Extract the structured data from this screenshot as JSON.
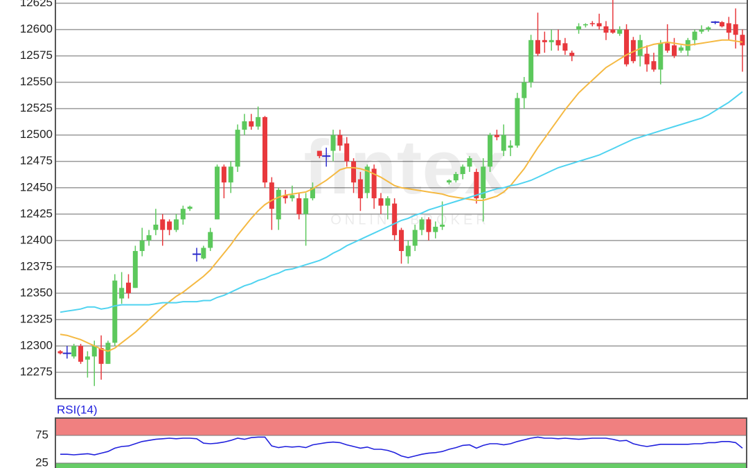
{
  "chart_data": [
    {
      "type": "candlestick",
      "ylim": [
        12250,
        12628
      ],
      "yticks": [
        12275,
        12300,
        12325,
        12350,
        12375,
        12400,
        12425,
        12450,
        12475,
        12500,
        12525,
        12550,
        12575,
        12600,
        12625
      ],
      "grid": true,
      "up_color": "#5cc85c",
      "down_color": "#e8383d",
      "doji_color": "#2b2bcc",
      "watermark": {
        "text": "fintex",
        "subtext": "ONLINE BROKER"
      },
      "open": [
        12295,
        12293,
        12290,
        12300,
        12287,
        12290,
        12298,
        12283,
        12303,
        12345,
        12360,
        12355,
        12390,
        12400,
        12410,
        12420,
        12418,
        12410,
        12420,
        12430,
        12387,
        12383,
        12393,
        12420,
        12470,
        12455,
        12470,
        12505,
        12513,
        12508,
        12517,
        12455,
        12420,
        12443,
        12440,
        12440,
        12425,
        12440,
        12485,
        12480,
        12485,
        12500,
        12492,
        12475,
        12458,
        12445,
        12468,
        12440,
        12433,
        12435,
        12410,
        12385,
        12395,
        12410,
        12420,
        12408,
        12413,
        12455,
        12457,
        12463,
        12470,
        12465,
        12440,
        12470,
        12500,
        12485,
        12488,
        12490,
        12535,
        12550,
        12590,
        12590,
        12588,
        12590,
        12587,
        12578,
        12600,
        12604,
        12606,
        12606,
        12603,
        12600,
        12596,
        12600,
        12590,
        12575,
        12577,
        12570,
        12562,
        12587,
        12585,
        12580,
        12580,
        12590,
        12598,
        12600,
        12607,
        12607,
        12606,
        12605,
        12595
      ],
      "high": [
        12296,
        12300,
        12302,
        12302,
        12295,
        12305,
        12310,
        12305,
        12368,
        12370,
        12368,
        12395,
        12412,
        12410,
        12430,
        12425,
        12420,
        12425,
        12433,
        12433,
        12393,
        12395,
        12412,
        12472,
        12472,
        12475,
        12510,
        12520,
        12520,
        12527,
        12518,
        12460,
        12450,
        12448,
        12452,
        12445,
        12445,
        12455,
        12485,
        12488,
        12505,
        12505,
        12498,
        12478,
        12465,
        12472,
        12472,
        12445,
        12442,
        12440,
        12412,
        12400,
        12415,
        12422,
        12422,
        12418,
        12437,
        12458,
        12465,
        12472,
        12480,
        12468,
        12478,
        12502,
        12505,
        12510,
        12495,
        12540,
        12555,
        12595,
        12616,
        12598,
        12600,
        12600,
        12592,
        12580,
        12606,
        12606,
        12608,
        12615,
        12608,
        12628,
        12603,
        12605,
        12593,
        12595,
        12585,
        12578,
        12590,
        12605,
        12592,
        12585,
        12592,
        12600,
        12604,
        12603,
        12608,
        12608,
        12612,
        12620,
        12600
      ],
      "low": [
        12292,
        12288,
        12288,
        12283,
        12270,
        12262,
        12268,
        12283,
        12300,
        12340,
        12345,
        12355,
        12385,
        12395,
        12405,
        12395,
        12405,
        12408,
        12415,
        12428,
        12380,
        12382,
        12390,
        12420,
        12440,
        12445,
        12465,
        12500,
        12505,
        12505,
        12450,
        12410,
        12410,
        12435,
        12437,
        12420,
        12395,
        12438,
        12478,
        12470,
        12475,
        12485,
        12470,
        12445,
        12428,
        12440,
        12430,
        12425,
        12420,
        12400,
        12378,
        12378,
        12390,
        12405,
        12400,
        12402,
        12410,
        12453,
        12455,
        12458,
        12465,
        12435,
        12418,
        12465,
        12495,
        12480,
        12480,
        12488,
        12525,
        12545,
        12575,
        12578,
        12580,
        12580,
        12576,
        12570,
        12596,
        12602,
        12603,
        12600,
        12590,
        12596,
        12594,
        12565,
        12568,
        12565,
        12560,
        12560,
        12548,
        12578,
        12573,
        12578,
        12575,
        12585,
        12596,
        12598,
        12605,
        12602,
        12590,
        12582,
        12560
      ],
      "close": [
        12293,
        12293,
        12300,
        12285,
        12290,
        12300,
        12283,
        12303,
        12362,
        12355,
        12350,
        12390,
        12400,
        12405,
        12415,
        12410,
        12410,
        12420,
        12430,
        12432,
        12387,
        12393,
        12408,
        12470,
        12455,
        12470,
        12505,
        12513,
        12508,
        12517,
        12455,
        12430,
        12448,
        12440,
        12443,
        12425,
        12440,
        12450,
        12480,
        12480,
        12500,
        12490,
        12475,
        12455,
        12440,
        12470,
        12440,
        12433,
        12440,
        12405,
        12390,
        12395,
        12410,
        12420,
        12408,
        12413,
        12415,
        12457,
        12463,
        12470,
        12478,
        12440,
        12470,
        12500,
        12498,
        12500,
        12490,
        12535,
        12550,
        12590,
        12577,
        12588,
        12590,
        12585,
        12580,
        12575,
        12603,
        12605,
        12605,
        12603,
        12597,
        12597,
        12600,
        12567,
        12570,
        12590,
        12567,
        12562,
        12587,
        12580,
        12575,
        12583,
        12590,
        12598,
        12600,
        12602,
        12607,
        12603,
        12597,
        12595,
        12585
      ],
      "overlays": [
        {
          "color": "#f5b942",
          "values": [
            12311,
            12310,
            12308,
            12306,
            12303,
            12300,
            12297,
            12295,
            12298,
            12303,
            12308,
            12313,
            12319,
            12325,
            12331,
            12337,
            12342,
            12347,
            12351,
            12356,
            12361,
            12366,
            12372,
            12380,
            12388,
            12396,
            12405,
            12413,
            12421,
            12428,
            12434,
            12438,
            12441,
            12443,
            12444,
            12445,
            12446,
            12449,
            12453,
            12457,
            12462,
            12467,
            12469,
            12469,
            12468,
            12466,
            12463,
            12460,
            12456,
            12452,
            12450,
            12449,
            12448,
            12447,
            12446,
            12445,
            12444,
            12442,
            12441,
            12440,
            12439,
            12438,
            12438,
            12440,
            12442,
            12446,
            12452,
            12460,
            12468,
            12478,
            12488,
            12497,
            12506,
            12515,
            12524,
            12532,
            12540,
            12546,
            12552,
            12558,
            12564,
            12568,
            12572,
            12576,
            12579,
            12582,
            12584,
            12586,
            12587,
            12588,
            12587,
            12586,
            12585,
            12586,
            12587,
            12588,
            12589,
            12590,
            12590,
            12589,
            12588
          ]
        },
        {
          "color": "#4fd3f0",
          "values": [
            12332,
            12333,
            12334,
            12335,
            12337,
            12337,
            12335,
            12336,
            12338,
            12339,
            12339,
            12339,
            12339,
            12339,
            12340,
            12341,
            12341,
            12341,
            12342,
            12342,
            12342,
            12343,
            12343,
            12346,
            12348,
            12351,
            12354,
            12357,
            12359,
            12362,
            12364,
            12367,
            12369,
            12372,
            12373,
            12375,
            12377,
            12379,
            12381,
            12384,
            12388,
            12391,
            12395,
            12398,
            12401,
            12404,
            12407,
            12410,
            12413,
            12416,
            12419,
            12421,
            12424,
            12426,
            12429,
            12431,
            12433,
            12435,
            12437,
            12439,
            12441,
            12443,
            12445,
            12447,
            12449,
            12450,
            12452,
            12453,
            12455,
            12457,
            12460,
            12463,
            12466,
            12469,
            12471,
            12473,
            12475,
            12477,
            12479,
            12481,
            12484,
            12487,
            12490,
            12493,
            12496,
            12498,
            12500,
            12502,
            12504,
            12506,
            12508,
            12510,
            12512,
            12514,
            12516,
            12519,
            12523,
            12527,
            12531,
            12536,
            12541
          ]
        }
      ]
    },
    {
      "type": "line",
      "title": "RSI(14)",
      "ylim": [
        0,
        100
      ],
      "yticks": [
        25,
        75
      ],
      "zones": [
        {
          "from": 75,
          "to": 100,
          "color": "#f08080"
        },
        {
          "from": 0,
          "to": 25,
          "color": "#66cc66"
        }
      ],
      "color": "#2020dd",
      "values": [
        41,
        41,
        40,
        41,
        42,
        40,
        43,
        46,
        52,
        55,
        56,
        60,
        64,
        66,
        68,
        69,
        70,
        69,
        70,
        70,
        69,
        61,
        60,
        61,
        63,
        66,
        70,
        68,
        71,
        72,
        72,
        56,
        53,
        55,
        54,
        55,
        53,
        58,
        60,
        62,
        63,
        62,
        58,
        55,
        52,
        54,
        50,
        50,
        48,
        44,
        38,
        35,
        38,
        41,
        43,
        44,
        46,
        50,
        53,
        57,
        58,
        52,
        57,
        60,
        60,
        58,
        60,
        64,
        67,
        70,
        72,
        70,
        70,
        69,
        70,
        69,
        68,
        69,
        70,
        70,
        70,
        68,
        65,
        66,
        60,
        57,
        55,
        57,
        59,
        59,
        59,
        59,
        59,
        60,
        60,
        62,
        62,
        64,
        64,
        62,
        52
      ]
    }
  ]
}
